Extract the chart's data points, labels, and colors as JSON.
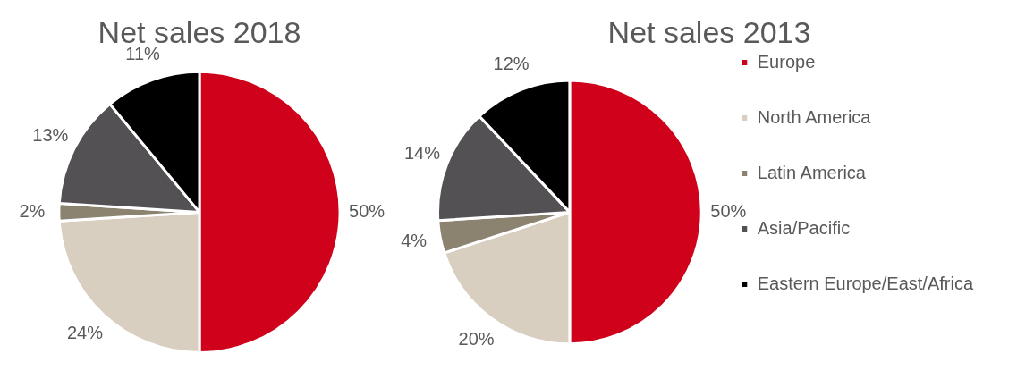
{
  "chart_data": [
    {
      "type": "pie",
      "title": "Net sales 2018",
      "categories": [
        null,
        null,
        null,
        null,
        null
      ],
      "values": [
        50,
        24,
        2,
        13,
        11
      ],
      "value_labels": [
        "50%",
        "24%",
        "2%",
        "13%",
        "11%"
      ],
      "colors": [
        "#d0021b",
        "#d9cfc0",
        "#8c8270",
        "#545154",
        "#000000"
      ],
      "legend": false
    },
    {
      "type": "pie",
      "title": "Net sales 2013",
      "categories": [
        "Europe",
        "North America",
        "Latin America",
        "Asia/Pacific",
        "Eastern Europe/East/Africa"
      ],
      "values": [
        50,
        20,
        4,
        14,
        12
      ],
      "value_labels": [
        "50%",
        "20%",
        "4%",
        "14%",
        "12%"
      ],
      "colors": [
        "#d0021b",
        "#d9cfc0",
        "#8c8270",
        "#545154",
        "#000000"
      ],
      "legend": "right"
    }
  ]
}
